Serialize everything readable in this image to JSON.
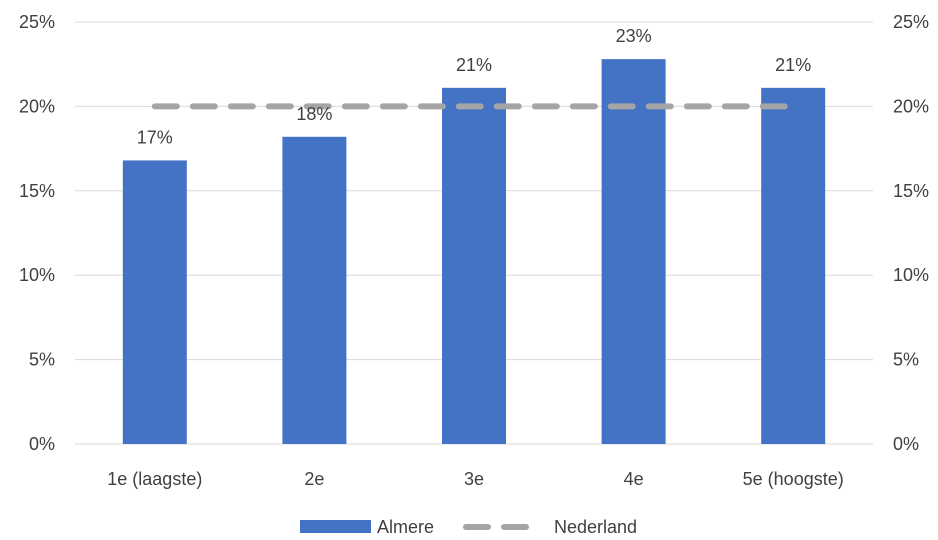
{
  "chart_data": {
    "type": "bar",
    "categories": [
      "1e (laagste)",
      "2e",
      "3e",
      "4e",
      "5e (hoogste)"
    ],
    "series": [
      {
        "name": "Almere",
        "type": "bar",
        "values": [
          16.8,
          18.2,
          21.1,
          22.8,
          21.1
        ],
        "labels": [
          "17%",
          "18%",
          "21%",
          "23%",
          "21%"
        ],
        "color": "#4472C4"
      },
      {
        "name": "Nederland",
        "type": "line",
        "style": "dashed",
        "values": [
          20,
          20,
          20,
          20,
          20
        ],
        "color": "#A5A5A5"
      }
    ],
    "y_ticks": [
      "0%",
      "5%",
      "10%",
      "15%",
      "20%",
      "25%"
    ],
    "y_tick_values": [
      0,
      5,
      10,
      15,
      20,
      25
    ],
    "ylim": [
      0,
      25
    ],
    "secondary_y_ticks": [
      "0%",
      "5%",
      "10%",
      "15%",
      "20%",
      "25%"
    ],
    "grid": true,
    "legend_position": "bottom",
    "title": "",
    "xlabel": "",
    "ylabel": ""
  }
}
